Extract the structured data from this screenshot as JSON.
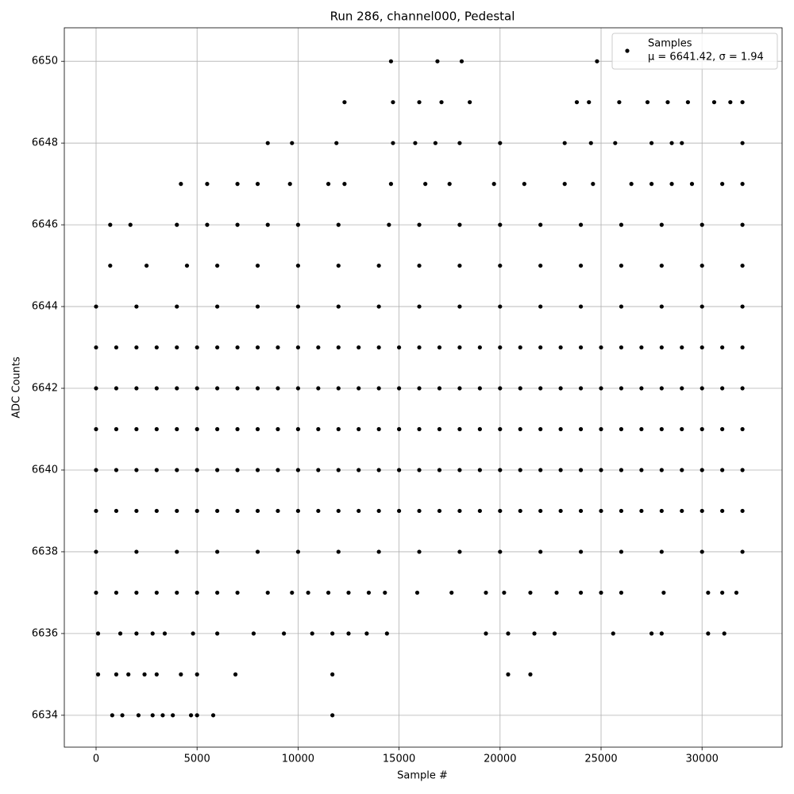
{
  "chart_data": {
    "type": "scatter",
    "title": "Run 286, channel000, Pedestal",
    "x_label": "Sample #",
    "y_label": "ADC Counts",
    "xlim": [
      -1572,
      33962
    ],
    "ylim": [
      6633.22,
      6650.82
    ],
    "xticks": [
      0,
      5000,
      10000,
      15000,
      20000,
      25000,
      30000
    ],
    "yticks": [
      6634,
      6636,
      6638,
      6640,
      6642,
      6644,
      6646,
      6648,
      6650
    ],
    "grid": true,
    "legend_loc": "upper right",
    "legend_note": "μ = 6641.42, σ = 1.94",
    "series": [
      {
        "name": "Samples",
        "color": "#000000",
        "x": [
          0,
          1000,
          2000,
          3000,
          4000,
          5000,
          6000,
          7000,
          8000,
          9000,
          10000,
          11000,
          12000,
          13000,
          14000,
          15000,
          16000,
          17000,
          18000,
          19000,
          20000,
          21000,
          22000,
          23000,
          24000,
          25000,
          26000,
          27000,
          28000,
          29000,
          30000,
          31000,
          32000,
          0,
          1000,
          2000,
          3000,
          4000,
          5000,
          6000,
          7000,
          8000,
          9000,
          10000,
          11000,
          12000,
          13000,
          14000,
          15000,
          16000,
          17000,
          18000,
          19000,
          20000,
          21000,
          22000,
          23000,
          24000,
          25000,
          26000,
          27000,
          28000,
          29000,
          30000,
          31000,
          32000,
          0,
          1000,
          2000,
          3000,
          4000,
          5000,
          6000,
          7000,
          8000,
          9000,
          10000,
          11000,
          12000,
          13000,
          14000,
          15000,
          16000,
          17000,
          18000,
          19000,
          20000,
          21000,
          22000,
          23000,
          24000,
          25000,
          26000,
          27000,
          28000,
          29000,
          30000,
          31000,
          32000,
          0,
          1000,
          2000,
          3000,
          4000,
          5000,
          6000,
          7000,
          8000,
          9000,
          10000,
          11000,
          12000,
          13000,
          14000,
          15000,
          16000,
          17000,
          18000,
          19000,
          20000,
          21000,
          22000,
          23000,
          24000,
          25000,
          26000,
          27000,
          28000,
          29000,
          30000,
          31000,
          32000,
          0,
          1000,
          2000,
          3000,
          4000,
          5000,
          6000,
          7000,
          8000,
          9000,
          10000,
          11000,
          12000,
          13000,
          14000,
          15000,
          16000,
          17000,
          18000,
          19000,
          20000,
          21000,
          22000,
          23000,
          24000,
          25000,
          26000,
          27000,
          28000,
          29000,
          30000,
          31000,
          32000,
          0,
          2000,
          4000,
          6000,
          8000,
          10000,
          12000,
          14000,
          16000,
          18000,
          20000,
          22000,
          24000,
          26000,
          28000,
          30000,
          32000,
          0,
          2000,
          4000,
          6000,
          8000,
          10000,
          12000,
          14000,
          16000,
          18000,
          20000,
          22000,
          24000,
          26000,
          28000,
          30000,
          32000,
          700,
          2500,
          4500,
          6000,
          8000,
          10000,
          12000,
          14000,
          16000,
          18000,
          20000,
          22000,
          24000,
          26000,
          28000,
          30000,
          32000,
          700,
          1700,
          4000,
          5500,
          7000,
          8500,
          10000,
          12000,
          14500,
          16000,
          18000,
          20000,
          22000,
          24000,
          26000,
          28000,
          30000,
          32000,
          4200,
          5500,
          7000,
          8000,
          9600,
          11500,
          12300,
          14600,
          16300,
          17500,
          19700,
          21200,
          23200,
          24600,
          26500,
          27500,
          28500,
          29500,
          31000,
          32000,
          8500,
          9700,
          11900,
          14700,
          15800,
          16800,
          18000,
          20000,
          23200,
          24500,
          25700,
          27500,
          28500,
          29000,
          32000,
          12300,
          14700,
          16000,
          17100,
          18500,
          23800,
          24400,
          25900,
          27300,
          28300,
          29300,
          30600,
          31400,
          32000,
          14600,
          16900,
          18100,
          24800,
          0,
          1000,
          2000,
          3000,
          4000,
          5000,
          6000,
          7000,
          8500,
          9700,
          10500,
          11500,
          12500,
          13500,
          14300,
          15900,
          17600,
          19300,
          20200,
          21500,
          22800,
          24000,
          25000,
          26000,
          28100,
          30300,
          31000,
          31700,
          100,
          1200,
          2000,
          2800,
          3400,
          4800,
          6000,
          7800,
          9300,
          10700,
          11700,
          12500,
          13400,
          14400,
          19300,
          20400,
          21700,
          22700,
          25600,
          27500,
          28000,
          30300,
          31100,
          100,
          1000,
          1600,
          2400,
          3000,
          4200,
          5000,
          6900,
          11700,
          20400,
          21500,
          800,
          1300,
          2100,
          2800,
          3300,
          3800,
          4700,
          5000,
          5800,
          11700
        ],
        "values": [
          6641,
          6641,
          6641,
          6641,
          6641,
          6641,
          6641,
          6641,
          6641,
          6641,
          6641,
          6641,
          6641,
          6641,
          6641,
          6641,
          6641,
          6641,
          6641,
          6641,
          6641,
          6641,
          6641,
          6641,
          6641,
          6641,
          6641,
          6641,
          6641,
          6641,
          6641,
          6641,
          6641,
          6640,
          6640,
          6640,
          6640,
          6640,
          6640,
          6640,
          6640,
          6640,
          6640,
          6640,
          6640,
          6640,
          6640,
          6640,
          6640,
          6640,
          6640,
          6640,
          6640,
          6640,
          6640,
          6640,
          6640,
          6640,
          6640,
          6640,
          6640,
          6640,
          6640,
          6640,
          6640,
          6640,
          6642,
          6642,
          6642,
          6642,
          6642,
          6642,
          6642,
          6642,
          6642,
          6642,
          6642,
          6642,
          6642,
          6642,
          6642,
          6642,
          6642,
          6642,
          6642,
          6642,
          6642,
          6642,
          6642,
          6642,
          6642,
          6642,
          6642,
          6642,
          6642,
          6642,
          6642,
          6642,
          6642,
          6639,
          6639,
          6639,
          6639,
          6639,
          6639,
          6639,
          6639,
          6639,
          6639,
          6639,
          6639,
          6639,
          6639,
          6639,
          6639,
          6639,
          6639,
          6639,
          6639,
          6639,
          6639,
          6639,
          6639,
          6639,
          6639,
          6639,
          6639,
          6639,
          6639,
          6639,
          6639,
          6639,
          6643,
          6643,
          6643,
          6643,
          6643,
          6643,
          6643,
          6643,
          6643,
          6643,
          6643,
          6643,
          6643,
          6643,
          6643,
          6643,
          6643,
          6643,
          6643,
          6643,
          6643,
          6643,
          6643,
          6643,
          6643,
          6643,
          6643,
          6643,
          6643,
          6643,
          6643,
          6643,
          6643,
          6638,
          6638,
          6638,
          6638,
          6638,
          6638,
          6638,
          6638,
          6638,
          6638,
          6638,
          6638,
          6638,
          6638,
          6638,
          6638,
          6638,
          6644,
          6644,
          6644,
          6644,
          6644,
          6644,
          6644,
          6644,
          6644,
          6644,
          6644,
          6644,
          6644,
          6644,
          6644,
          6644,
          6644,
          6645,
          6645,
          6645,
          6645,
          6645,
          6645,
          6645,
          6645,
          6645,
          6645,
          6645,
          6645,
          6645,
          6645,
          6645,
          6645,
          6645,
          6646,
          6646,
          6646,
          6646,
          6646,
          6646,
          6646,
          6646,
          6646,
          6646,
          6646,
          6646,
          6646,
          6646,
          6646,
          6646,
          6646,
          6646,
          6647,
          6647,
          6647,
          6647,
          6647,
          6647,
          6647,
          6647,
          6647,
          6647,
          6647,
          6647,
          6647,
          6647,
          6647,
          6647,
          6647,
          6647,
          6647,
          6647,
          6648,
          6648,
          6648,
          6648,
          6648,
          6648,
          6648,
          6648,
          6648,
          6648,
          6648,
          6648,
          6648,
          6648,
          6648,
          6649,
          6649,
          6649,
          6649,
          6649,
          6649,
          6649,
          6649,
          6649,
          6649,
          6649,
          6649,
          6649,
          6649,
          6650,
          6650,
          6650,
          6650,
          6637,
          6637,
          6637,
          6637,
          6637,
          6637,
          6637,
          6637,
          6637,
          6637,
          6637,
          6637,
          6637,
          6637,
          6637,
          6637,
          6637,
          6637,
          6637,
          6637,
          6637,
          6637,
          6637,
          6637,
          6637,
          6637,
          6637,
          6637,
          6636,
          6636,
          6636,
          6636,
          6636,
          6636,
          6636,
          6636,
          6636,
          6636,
          6636,
          6636,
          6636,
          6636,
          6636,
          6636,
          6636,
          6636,
          6636,
          6636,
          6636,
          6636,
          6636,
          6635,
          6635,
          6635,
          6635,
          6635,
          6635,
          6635,
          6635,
          6635,
          6635,
          6635,
          6634,
          6634,
          6634,
          6634,
          6634,
          6634,
          6634,
          6634,
          6634,
          6634
        ]
      }
    ]
  }
}
